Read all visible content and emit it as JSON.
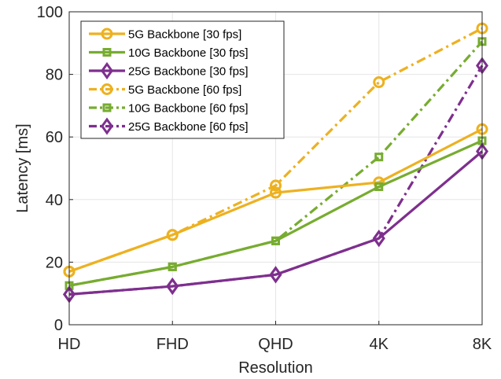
{
  "chart_data": {
    "type": "line",
    "xlabel": "Resolution",
    "ylabel": "Latency [ms]",
    "categories": [
      "HD",
      "FHD",
      "QHD",
      "4K",
      "8K"
    ],
    "ylim": [
      0,
      100
    ],
    "yticks": [
      0,
      20,
      40,
      60,
      80,
      100
    ],
    "grid": true,
    "legend_position": "top-left",
    "series": [
      {
        "name": "5G Backbone [30 fps]",
        "values": [
          17.0,
          28.7,
          42.2,
          45.5,
          62.5
        ],
        "color": "#EDB120",
        "marker": "circle",
        "linestyle": "solid"
      },
      {
        "name": "10G Backbone [30 fps]",
        "values": [
          12.5,
          18.5,
          26.8,
          44.1,
          58.8
        ],
        "color": "#77AC30",
        "marker": "square",
        "linestyle": "solid"
      },
      {
        "name": "25G Backbone [30 fps]",
        "values": [
          9.7,
          12.3,
          16.0,
          27.6,
          55.4
        ],
        "color": "#7E2F8E",
        "marker": "diamond",
        "linestyle": "solid"
      },
      {
        "name": "5G Backbone [60 fps]",
        "values": [
          17.0,
          28.7,
          44.5,
          77.5,
          94.7
        ],
        "color": "#EDB120",
        "marker": "circle",
        "linestyle": "dashdot"
      },
      {
        "name": "10G Backbone [60 fps]",
        "values": [
          12.5,
          18.5,
          26.8,
          53.6,
          90.5
        ],
        "color": "#77AC30",
        "marker": "square",
        "linestyle": "dashdot"
      },
      {
        "name": "25G Backbone [60 fps]",
        "values": [
          9.7,
          12.3,
          16.0,
          27.6,
          82.8
        ],
        "color": "#7E2F8E",
        "marker": "diamond",
        "linestyle": "dashdot"
      }
    ]
  }
}
